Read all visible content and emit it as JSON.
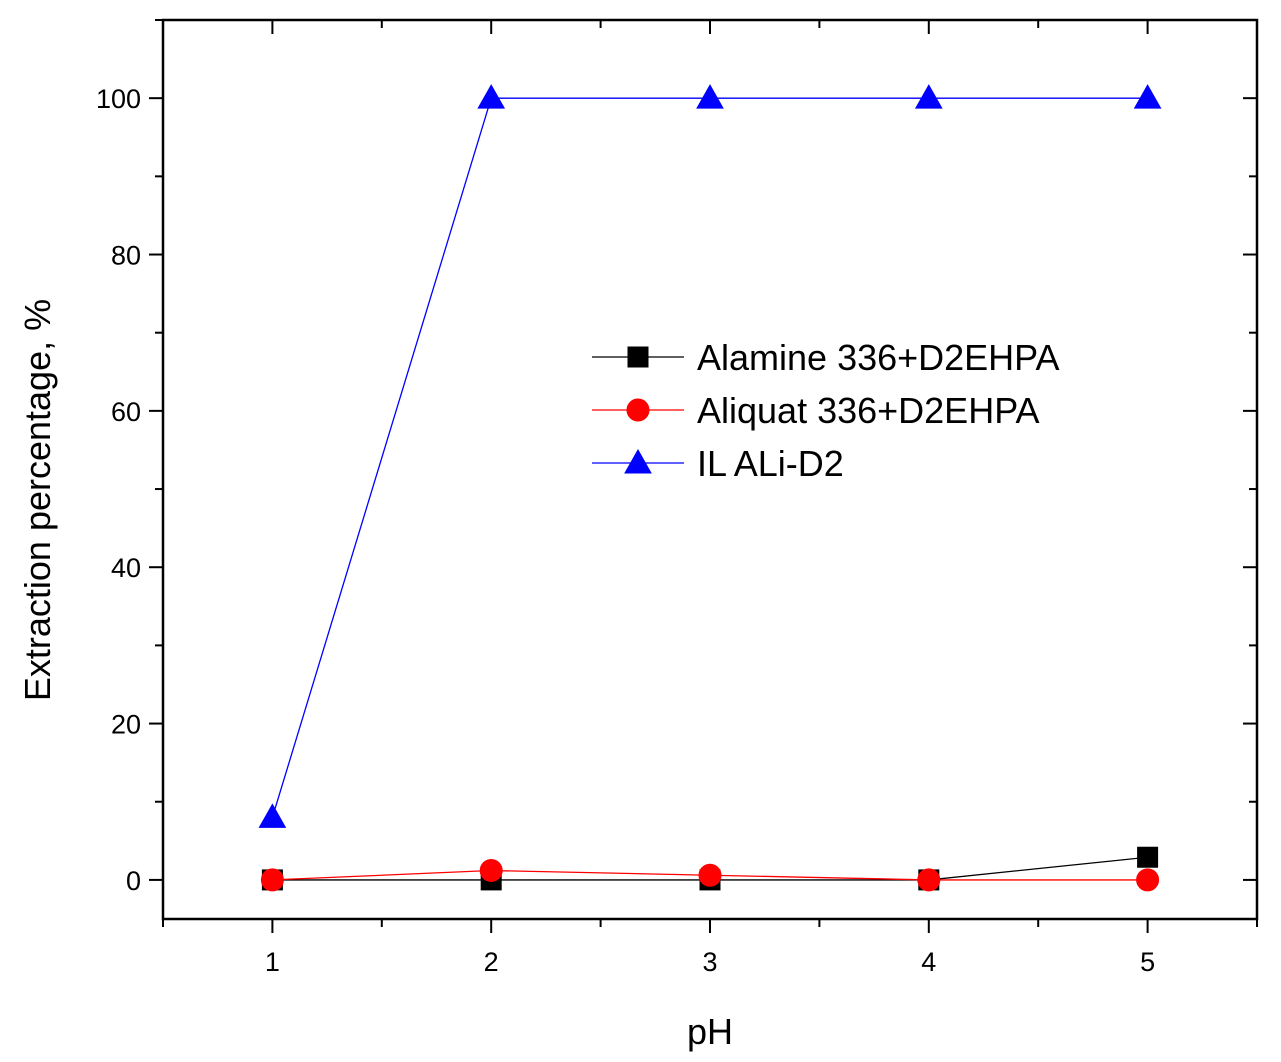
{
  "chart_data": {
    "type": "line",
    "xlabel": "pH",
    "ylabel": "Extraction percentage, %",
    "xlim": [
      0.5,
      5.5
    ],
    "ylim": [
      -5,
      110
    ],
    "xticks": [
      1,
      2,
      3,
      4,
      5
    ],
    "yticks": [
      0,
      20,
      40,
      60,
      80,
      100
    ],
    "grid": false,
    "legend_position": "center-right",
    "x": [
      1,
      2,
      3,
      4,
      5
    ],
    "series": [
      {
        "name": "Alamine 336+D2EHPA",
        "values": [
          0,
          0,
          0,
          0,
          2.9
        ],
        "color": "#000000",
        "marker": "square"
      },
      {
        "name": "Aliquat 336+D2EHPA",
        "values": [
          0,
          1.2,
          0.6,
          0,
          0
        ],
        "color": "#ff0000",
        "marker": "circle"
      },
      {
        "name": "IL ALi-D2",
        "values": [
          8,
          100,
          100,
          100,
          100
        ],
        "color": "#0000ff",
        "marker": "triangle"
      }
    ]
  }
}
